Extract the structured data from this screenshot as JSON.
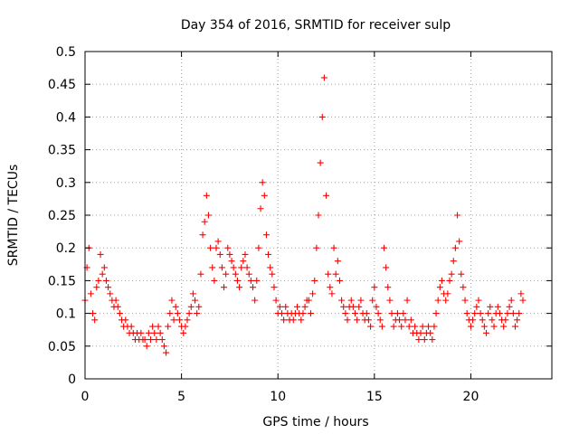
{
  "chart_data": {
    "type": "scatter",
    "title": "Day 354 of 2016, SRMTID for receiver sulp",
    "xlabel": "GPS time / hours",
    "ylabel": "SRMTID / TECUs",
    "xlim": [
      0,
      24.2
    ],
    "ylim": [
      0,
      0.5
    ],
    "xticks": [
      0,
      5,
      10,
      15,
      20
    ],
    "xtick_labels": [
      "0",
      "5",
      "10",
      "15",
      "20"
    ],
    "yticks": [
      0,
      0.05,
      0.1,
      0.15,
      0.2,
      0.25,
      0.3,
      0.35,
      0.4,
      0.45,
      0.5
    ],
    "ytick_labels": [
      "0",
      "0.05",
      "0.1",
      "0.15",
      "0.2",
      "0.25",
      "0.3",
      "0.35",
      "0.4",
      "0.45",
      "0.5"
    ],
    "grid": true,
    "marker": "+",
    "color": "#ff0000",
    "series": [
      {
        "name": "SRMTID",
        "x": [
          0.0,
          0.1,
          0.2,
          0.3,
          0.4,
          0.5,
          0.6,
          0.7,
          0.8,
          0.9,
          1.0,
          1.1,
          1.2,
          1.3,
          1.4,
          1.5,
          1.6,
          1.7,
          1.8,
          1.9,
          2.0,
          2.1,
          2.2,
          2.3,
          2.4,
          2.5,
          2.6,
          2.7,
          2.8,
          2.9,
          3.0,
          3.1,
          3.2,
          3.3,
          3.4,
          3.5,
          3.6,
          3.7,
          3.8,
          3.9,
          4.0,
          4.1,
          4.2,
          4.3,
          4.4,
          4.5,
          4.6,
          4.7,
          4.8,
          4.9,
          5.0,
          5.1,
          5.2,
          5.3,
          5.4,
          5.5,
          5.6,
          5.7,
          5.8,
          5.9,
          6.0,
          6.1,
          6.2,
          6.3,
          6.4,
          6.5,
          6.6,
          6.7,
          6.8,
          6.9,
          7.0,
          7.1,
          7.2,
          7.3,
          7.4,
          7.5,
          7.6,
          7.7,
          7.8,
          7.9,
          8.0,
          8.1,
          8.2,
          8.3,
          8.4,
          8.5,
          8.6,
          8.7,
          8.8,
          8.9,
          9.0,
          9.1,
          9.2,
          9.3,
          9.4,
          9.5,
          9.6,
          9.7,
          9.8,
          9.9,
          10.0,
          10.1,
          10.2,
          10.3,
          10.4,
          10.5,
          10.6,
          10.7,
          10.8,
          10.9,
          11.0,
          11.1,
          11.2,
          11.3,
          11.4,
          11.5,
          11.6,
          11.7,
          11.8,
          11.9,
          12.0,
          12.1,
          12.2,
          12.3,
          12.4,
          12.5,
          12.6,
          12.7,
          12.8,
          12.9,
          13.0,
          13.1,
          13.2,
          13.3,
          13.4,
          13.5,
          13.6,
          13.7,
          13.8,
          13.9,
          14.0,
          14.1,
          14.2,
          14.3,
          14.4,
          14.5,
          14.6,
          14.7,
          14.8,
          14.9,
          15.0,
          15.1,
          15.2,
          15.3,
          15.4,
          15.5,
          15.6,
          15.7,
          15.8,
          15.9,
          16.0,
          16.1,
          16.2,
          16.3,
          16.4,
          16.5,
          16.6,
          16.7,
          16.8,
          16.9,
          17.0,
          17.1,
          17.2,
          17.3,
          17.4,
          17.5,
          17.6,
          17.7,
          17.8,
          17.9,
          18.0,
          18.1,
          18.2,
          18.3,
          18.4,
          18.5,
          18.6,
          18.7,
          18.8,
          18.9,
          19.0,
          19.1,
          19.2,
          19.3,
          19.4,
          19.5,
          19.6,
          19.7,
          19.8,
          19.9,
          20.0,
          20.1,
          20.2,
          20.3,
          20.4,
          20.5,
          20.6,
          20.7,
          20.8,
          20.9,
          21.0,
          21.1,
          21.2,
          21.3,
          21.4,
          21.5,
          21.6,
          21.7,
          21.8,
          21.9,
          22.0,
          22.1,
          22.2,
          22.3,
          22.4,
          22.5,
          22.6,
          22.7
        ],
        "y": [
          0.12,
          0.17,
          0.2,
          0.13,
          0.1,
          0.09,
          0.14,
          0.15,
          0.19,
          0.16,
          0.17,
          0.15,
          0.14,
          0.13,
          0.12,
          0.11,
          0.12,
          0.11,
          0.1,
          0.09,
          0.08,
          0.09,
          0.08,
          0.07,
          0.08,
          0.07,
          0.06,
          0.07,
          0.06,
          0.07,
          0.06,
          0.06,
          0.05,
          0.07,
          0.06,
          0.08,
          0.07,
          0.06,
          0.08,
          0.07,
          0.06,
          0.05,
          0.04,
          0.08,
          0.1,
          0.12,
          0.09,
          0.11,
          0.1,
          0.09,
          0.08,
          0.07,
          0.08,
          0.09,
          0.1,
          0.11,
          0.13,
          0.12,
          0.1,
          0.11,
          0.16,
          0.22,
          0.24,
          0.28,
          0.25,
          0.2,
          0.17,
          0.15,
          0.2,
          0.21,
          0.19,
          0.17,
          0.14,
          0.16,
          0.2,
          0.19,
          0.18,
          0.17,
          0.16,
          0.15,
          0.14,
          0.17,
          0.18,
          0.19,
          0.17,
          0.16,
          0.15,
          0.14,
          0.12,
          0.15,
          0.2,
          0.26,
          0.3,
          0.28,
          0.22,
          0.19,
          0.17,
          0.16,
          0.14,
          0.12,
          0.1,
          0.11,
          0.1,
          0.09,
          0.11,
          0.1,
          0.09,
          0.1,
          0.09,
          0.1,
          0.11,
          0.1,
          0.09,
          0.1,
          0.11,
          0.12,
          0.12,
          0.1,
          0.13,
          0.15,
          0.2,
          0.25,
          0.33,
          0.4,
          0.46,
          0.28,
          0.16,
          0.14,
          0.13,
          0.2,
          0.16,
          0.18,
          0.15,
          0.12,
          0.11,
          0.1,
          0.09,
          0.11,
          0.12,
          0.11,
          0.1,
          0.09,
          0.11,
          0.12,
          0.1,
          0.09,
          0.1,
          0.09,
          0.08,
          0.12,
          0.14,
          0.11,
          0.1,
          0.09,
          0.08,
          0.2,
          0.17,
          0.14,
          0.12,
          0.1,
          0.08,
          0.09,
          0.1,
          0.09,
          0.08,
          0.1,
          0.09,
          0.12,
          0.08,
          0.09,
          0.07,
          0.08,
          0.07,
          0.06,
          0.07,
          0.08,
          0.06,
          0.07,
          0.08,
          0.07,
          0.06,
          0.08,
          0.1,
          0.12,
          0.14,
          0.15,
          0.13,
          0.12,
          0.13,
          0.15,
          0.16,
          0.18,
          0.2,
          0.25,
          0.21,
          0.16,
          0.14,
          0.12,
          0.1,
          0.09,
          0.08,
          0.09,
          0.1,
          0.11,
          0.12,
          0.1,
          0.09,
          0.08,
          0.07,
          0.1,
          0.11,
          0.09,
          0.08,
          0.1,
          0.11,
          0.1,
          0.09,
          0.08,
          0.09,
          0.1,
          0.11,
          0.12,
          0.1,
          0.08,
          0.09,
          0.1,
          0.13,
          0.12
        ]
      }
    ]
  }
}
